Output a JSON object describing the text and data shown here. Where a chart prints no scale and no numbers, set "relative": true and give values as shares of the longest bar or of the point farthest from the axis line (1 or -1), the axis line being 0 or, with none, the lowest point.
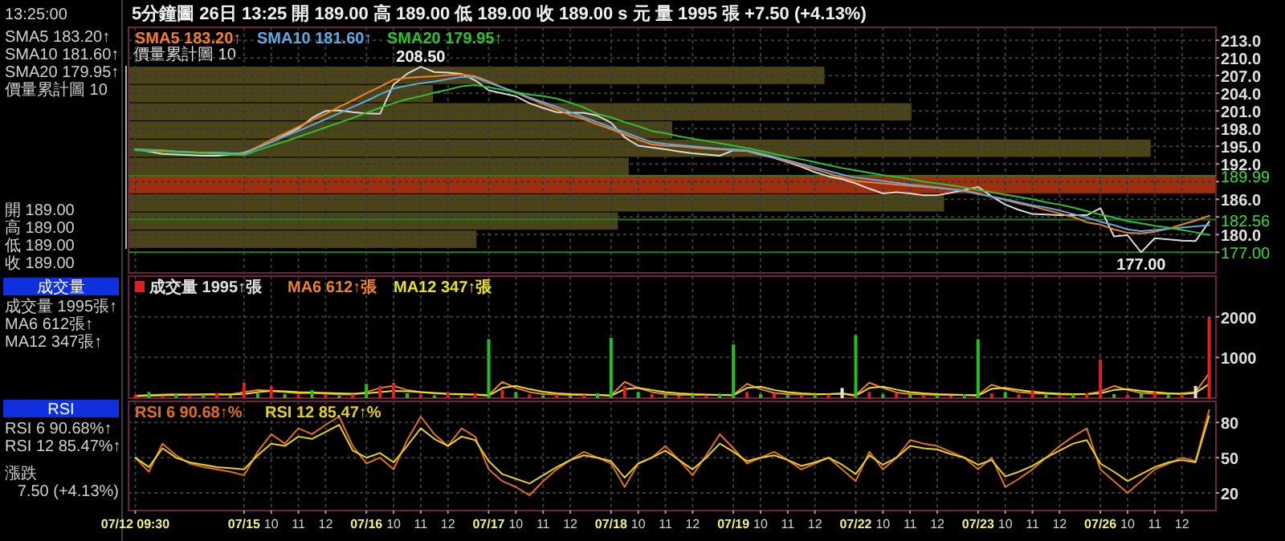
{
  "chart_data": [
    {
      "type": "other",
      "annotations": [
        "13:25:00",
        "SMA5 183.20↑",
        "SMA10 181.60↑",
        "SMA20 179.95↑",
        "價量累計圖 10",
        "開 189.00",
        "高 189.00",
        "低 189.00",
        "收 189.00",
        "成交量",
        "成交量 1995張↑",
        "MA6 612張↑",
        "MA12 347張↑",
        "RSI",
        "RSI 6 90.68%↑",
        "RSI 12 85.47%↑",
        "漲跌 7.50 (+4.13%)"
      ]
    },
    {
      "type": "bar",
      "orientation": "horizontal",
      "relative": true,
      "title": "價量累計圖 10",
      "categories": [
        null,
        null,
        null,
        null,
        null,
        null,
        null,
        null,
        null,
        null
      ],
      "values": [
        0.64,
        0.28,
        0.72,
        0.5,
        0.94,
        0.46,
        1,
        0.75,
        0.45,
        0.32
      ],
      "colors": [
        "#4a4418",
        "#4a4418",
        "#4a4418",
        "#4a4418",
        "#4a4418",
        "#4a4418",
        "#9c2f10",
        "#4a4418",
        "#4a4418",
        "#4a4418"
      ]
    },
    {
      "type": "line",
      "title": "5分鐘圖 26日 13:25 開 189.00 高 189.00 低 189.00 收 189.00 s 元 量 1995 張 +7.50 (+4.13%)",
      "grid": true,
      "tick_labels": "y",
      "ylim": [
        173.5,
        215.2
      ],
      "categories": [
        null,
        null,
        null,
        null,
        null,
        null,
        null,
        null,
        null,
        null,
        null,
        null,
        null,
        null,
        null,
        null,
        null,
        null,
        null,
        null,
        null,
        null,
        null,
        null,
        null,
        null,
        null,
        null,
        null,
        null,
        null,
        null,
        null,
        null,
        null,
        null,
        null,
        null,
        null,
        null,
        null,
        null,
        null,
        null,
        null,
        null,
        null,
        null,
        null,
        null,
        null,
        null,
        null,
        null,
        null,
        null,
        null,
        null,
        null,
        null,
        null,
        null,
        null,
        null,
        null,
        null,
        null,
        null,
        null,
        null,
        null,
        null,
        null,
        null,
        null,
        null,
        null,
        null,
        null,
        null
      ],
      "yticks": [
        {
          "value": 213,
          "label": "213.0"
        },
        {
          "value": 210,
          "label": "210.0"
        },
        {
          "value": 207,
          "label": "207.0"
        },
        {
          "value": 204,
          "label": "204.0"
        },
        {
          "value": 201,
          "label": "201.0"
        },
        {
          "value": 198,
          "label": "198.0"
        },
        {
          "value": 195,
          "label": "195.0"
        },
        {
          "value": 192,
          "label": "192.0"
        },
        {
          "value": 189,
          "label": null
        },
        {
          "value": 186,
          "label": "186.0"
        },
        {
          "value": 183,
          "label": null
        },
        {
          "value": 180,
          "label": "180.0"
        },
        {
          "value": 177,
          "label": null
        }
      ],
      "ref_lines": [
        {
          "axis": "y",
          "value": 189.99,
          "label": "189.99",
          "color": "#208020"
        },
        {
          "axis": "y",
          "value": 182.56,
          "label": "182.56",
          "color": "#208020"
        },
        {
          "axis": "y",
          "value": 177,
          "label": "177.00",
          "color": "#208020"
        }
      ],
      "annotations": [
        {
          "text": "208.50",
          "y": 208.5
        },
        "177.00"
      ],
      "series": [
        {
          "color": "#d8d8d8",
          "values": [
            194.5,
            194.1,
            193.7,
            193.6,
            193.5,
            193.4,
            193.4,
            193.6,
            193.9,
            194.8,
            195.7,
            196.9,
            198,
            199.8,
            201,
            201.1,
            200.8,
            200.6,
            200.5,
            205.5,
            207.3,
            208.5,
            207.6,
            207.5,
            207.3,
            206.2,
            204.5,
            204,
            203.5,
            202.3,
            201.5,
            200.8,
            200.7,
            200.7,
            200.2,
            199,
            196.5,
            195.1,
            194.8,
            194.5,
            194.1,
            193.8,
            193.6,
            193.4,
            194.3,
            194.2,
            193.6,
            193,
            192.3,
            191.5,
            190.6,
            189.9,
            189.4,
            188.7,
            187.8,
            187,
            187.2,
            187,
            186.7,
            186.7,
            187.1,
            187.6,
            188.1,
            186.5,
            185.1,
            184.2,
            183.5,
            183.4,
            183.3,
            183.3,
            183.3,
            184.5,
            179.7,
            179.9,
            177,
            179.4,
            179.2,
            179,
            178.9,
            182.2
          ]
        },
        {
          "name": "SMA5 183.20↑",
          "color": "#f08030",
          "values": [
            194.5,
            194.4,
            194.3,
            194.1,
            194,
            193.9,
            193.9,
            193.8,
            193.8,
            194.9,
            196.1,
            197.2,
            198.3,
            199.4,
            200.5,
            201.7,
            202.8,
            204,
            205.1,
            206.3,
            206.6,
            206.8,
            206.9,
            207.1,
            207.2,
            206.9,
            206,
            205,
            204.1,
            203.1,
            202.2,
            201.3,
            200.3,
            199.6,
            198.7,
            197.9,
            197,
            196.1,
            195.3,
            195.1,
            195,
            194.8,
            194.6,
            194.5,
            194.3,
            194.2,
            193.7,
            193.1,
            192.4,
            191.7,
            191.1,
            190.4,
            189.7,
            189.1,
            188.9,
            188.7,
            188.5,
            188.3,
            188.1,
            187.9,
            187.7,
            187.5,
            187,
            186.4,
            185.9,
            185.3,
            184.8,
            184.2,
            183.6,
            183,
            182.1,
            181.7,
            180.9,
            180.3,
            180.2,
            180.5,
            181,
            181.7,
            182.4,
            183.2
          ]
        },
        {
          "name": "SMA10 181.60↑",
          "color": "#60a8e0",
          "values": [
            194.4,
            194.3,
            194.2,
            194.1,
            194,
            193.9,
            193.9,
            193.8,
            193.7,
            194.7,
            195.7,
            196.7,
            197.6,
            198.6,
            199.6,
            200.6,
            201.7,
            202.7,
            203.8,
            204.8,
            205.3,
            205.7,
            206,
            206.4,
            206.8,
            206.7,
            205.8,
            205,
            204.2,
            203.3,
            202.5,
            201.7,
            200.8,
            199.9,
            199.1,
            198.2,
            197.4,
            196.5,
            195.7,
            195.4,
            195.2,
            195,
            194.8,
            194.6,
            194.5,
            194.3,
            193.8,
            193.2,
            192.6,
            192,
            191.4,
            190.8,
            190.2,
            189.7,
            189.4,
            189.1,
            188.8,
            188.5,
            188.3,
            188,
            187.7,
            187.4,
            186.9,
            186.5,
            186,
            185.5,
            185,
            184.6,
            184.1,
            183.5,
            182.9,
            182.2,
            181.6,
            180.9,
            180.6,
            180.8,
            181,
            181.2,
            181.4,
            181.6
          ]
        },
        {
          "name": "SMA20 179.95↑",
          "color": "#30c030",
          "values": [
            194.3,
            194.2,
            194.1,
            194,
            193.9,
            193.8,
            193.7,
            193.6,
            193.5,
            194.3,
            195.1,
            195.8,
            196.6,
            197.4,
            198.2,
            199,
            199.8,
            200.7,
            201.5,
            202.3,
            203,
            203.5,
            204.1,
            204.6,
            205.2,
            205.4,
            205,
            204.6,
            204.2,
            203.8,
            203.5,
            203.1,
            202.4,
            201.6,
            200.5,
            199.9,
            199.1,
            198.4,
            197.6,
            197.2,
            196.7,
            196.3,
            195.9,
            195.5,
            195.1,
            194.7,
            194.2,
            193.7,
            193.2,
            192.8,
            192.3,
            191.8,
            191.3,
            190.9,
            190.5,
            190.1,
            189.8,
            189.4,
            189,
            188.7,
            188.4,
            188,
            187.6,
            187.2,
            186.8,
            186.4,
            186,
            185.5,
            185.1,
            184.6,
            184,
            183.4,
            182.9,
            182.3,
            181.9,
            181.5,
            181.2,
            180.8,
            180.4,
            179.95
          ]
        }
      ]
    },
    {
      "type": "bar",
      "grid": true,
      "tick_labels": "y",
      "ylim": [
        0,
        3000
      ],
      "yticks": [
        1000,
        2000
      ],
      "categories": [
        null,
        null,
        null,
        null,
        null,
        null,
        null,
        null,
        null,
        null,
        null,
        null,
        null,
        null,
        null,
        null,
        null,
        null,
        null,
        null,
        null,
        null,
        null,
        null,
        null,
        null,
        null,
        null,
        null,
        null,
        null,
        null,
        null,
        null,
        null,
        null,
        null,
        null,
        null,
        null,
        null,
        null,
        null,
        null,
        null,
        null,
        null,
        null,
        null,
        null,
        null,
        null,
        null,
        null,
        null,
        null,
        null,
        null,
        null,
        null,
        null,
        null,
        null,
        null,
        null,
        null,
        null,
        null,
        null,
        null,
        null,
        null,
        null,
        null,
        null,
        null,
        null,
        null,
        null,
        null
      ],
      "series": [
        {
          "name": "成交量 1995↑張",
          "color": "#e0e0e0",
          "values": [
            80,
            150,
            60,
            120,
            70,
            90,
            120,
            60,
            380,
            120,
            300,
            100,
            80,
            200,
            90,
            60,
            100,
            350,
            300,
            380,
            120,
            90,
            70,
            150,
            60,
            120,
            1450,
            200,
            150,
            90,
            70,
            100,
            60,
            80,
            120,
            1480,
            300,
            150,
            100,
            80,
            60,
            90,
            70,
            110,
            1320,
            150,
            100,
            120,
            80,
            60,
            100,
            90,
            250,
            1550,
            150,
            100,
            120,
            90,
            70,
            80,
            60,
            100,
            1450,
            120,
            150,
            90,
            200,
            80,
            60,
            100,
            120,
            950,
            100,
            80,
            120,
            150,
            90,
            100,
            300,
            1995
          ],
          "colors": [
            "#e02020",
            "#20c020",
            "#e02020",
            "#20c020",
            "#e02020",
            "#20c020",
            "#e02020",
            "#20c020",
            "#e02020",
            "#20c020",
            "#e02020",
            "#20c020",
            "#e02020",
            "#20c020",
            "#e02020",
            "#20c020",
            "#e02020",
            "#20c020",
            "#e02020",
            "#e02020",
            "#20c020",
            "#e02020",
            "#20c020",
            "#e02020",
            "#20c020",
            "#e02020",
            "#20c020",
            "#e02020",
            "#20c020",
            "#e02020",
            "#20c020",
            "#e02020",
            "#20c020",
            "#e02020",
            "#20c020",
            "#20c020",
            "#e02020",
            "#20c020",
            "#e02020",
            "#20c020",
            "#e02020",
            "#20c020",
            "#e02020",
            "#20c020",
            "#20c020",
            "#e02020",
            "#20c020",
            "#e02020",
            "#20c020",
            "#e02020",
            "#20c020",
            "#e02020",
            "#e0e0e0",
            "#20c020",
            "#e02020",
            "#20c020",
            "#e02020",
            "#20c020",
            "#e02020",
            "#20c020",
            "#e02020",
            "#20c020",
            "#20c020",
            "#e02020",
            "#20c020",
            "#e02020",
            "#e02020",
            "#20c020",
            "#e02020",
            "#20c020",
            "#e02020",
            "#e02020",
            "#20c020",
            "#e02020",
            "#20c020",
            "#e02020",
            "#20c020",
            "#e02020",
            "#e0e0e0",
            "#e02020"
          ]
        },
        {
          "type": "line",
          "name": "MA6 612↑張",
          "color": "#f08030",
          "values": [
            60,
            80,
            90,
            100,
            90,
            95,
            100,
            90,
            150,
            200,
            180,
            150,
            120,
            130,
            110,
            90,
            90,
            150,
            250,
            300,
            200,
            150,
            120,
            100,
            90,
            90,
            80,
            400,
            250,
            150,
            100,
            90,
            80,
            80,
            80,
            70,
            400,
            250,
            150,
            100,
            80,
            80,
            80,
            80,
            80,
            350,
            220,
            130,
            100,
            90,
            90,
            100,
            120,
            80,
            380,
            250,
            140,
            100,
            90,
            80,
            80,
            80,
            80,
            330,
            220,
            150,
            120,
            110,
            90,
            90,
            100,
            160,
            300,
            200,
            130,
            110,
            110,
            120,
            150,
            612
          ]
        },
        {
          "type": "line",
          "name": "MA12 347↑張",
          "color": "#e8e020",
          "values": [
            50,
            60,
            70,
            80,
            85,
            90,
            90,
            90,
            100,
            150,
            180,
            170,
            150,
            140,
            130,
            120,
            110,
            120,
            150,
            180,
            170,
            150,
            130,
            110,
            100,
            90,
            60,
            250,
            300,
            220,
            160,
            120,
            100,
            90,
            80,
            60,
            220,
            250,
            200,
            150,
            120,
            100,
            90,
            80,
            70,
            250,
            280,
            200,
            150,
            120,
            100,
            100,
            110,
            60,
            250,
            280,
            210,
            150,
            120,
            100,
            90,
            80,
            60,
            230,
            250,
            200,
            160,
            130,
            110,
            100,
            100,
            120,
            200,
            220,
            180,
            150,
            120,
            100,
            130,
            347
          ]
        }
      ]
    },
    {
      "type": "line",
      "grid": true,
      "ylim": [
        5,
        98
      ],
      "yticks": [
        20,
        50,
        80
      ],
      "categories": [
        "07/12 09:30",
        null,
        null,
        null,
        null,
        null,
        null,
        null,
        "07/15",
        null,
        "10",
        null,
        "11",
        null,
        "12",
        null,
        null,
        "07/16",
        null,
        "10",
        null,
        "11",
        null,
        "12",
        null,
        null,
        "07/17",
        null,
        "10",
        null,
        "11",
        null,
        "12",
        null,
        null,
        "07/18",
        null,
        "10",
        null,
        "11",
        null,
        "12",
        null,
        null,
        "07/19",
        null,
        "10",
        null,
        "11",
        null,
        "12",
        null,
        null,
        "07/22",
        null,
        "10",
        null,
        "11",
        null,
        "12",
        null,
        null,
        "07/23",
        null,
        "10",
        null,
        "11",
        null,
        "12",
        null,
        null,
        "07/26",
        null,
        "10",
        null,
        "11",
        null,
        "12",
        null,
        null
      ],
      "series": [
        {
          "name": "RSI 6 90.68↑%",
          "color": "#e07020",
          "values": [
            50,
            38,
            62,
            52,
            45,
            42,
            40,
            38,
            35,
            55,
            70,
            62,
            75,
            70,
            78,
            85,
            60,
            45,
            50,
            40,
            65,
            85,
            70,
            60,
            75,
            68,
            40,
            30,
            25,
            18,
            30,
            40,
            48,
            55,
            50,
            45,
            25,
            45,
            50,
            60,
            48,
            35,
            52,
            70,
            58,
            45,
            50,
            55,
            48,
            40,
            45,
            50,
            40,
            30,
            55,
            40,
            50,
            65,
            62,
            60,
            55,
            50,
            40,
            50,
            25,
            32,
            40,
            50,
            60,
            68,
            75,
            40,
            30,
            20,
            30,
            40,
            45,
            50,
            47,
            90.68
          ]
        },
        {
          "name": "RSI 12 85.47↑%",
          "color": "#e8d020",
          "values": [
            50,
            42,
            58,
            50,
            46,
            44,
            42,
            41,
            40,
            52,
            62,
            60,
            68,
            66,
            72,
            78,
            56,
            50,
            54,
            46,
            60,
            75,
            66,
            60,
            68,
            65,
            47,
            36,
            32,
            28,
            35,
            42,
            48,
            52,
            50,
            47,
            33,
            45,
            50,
            56,
            48,
            40,
            50,
            62,
            55,
            47,
            50,
            52,
            48,
            43,
            46,
            50,
            44,
            36,
            52,
            44,
            50,
            60,
            58,
            57,
            53,
            50,
            44,
            48,
            34,
            38,
            43,
            50,
            56,
            62,
            65,
            45,
            38,
            30,
            36,
            42,
            46,
            48,
            46,
            85.47
          ]
        }
      ]
    }
  ]
}
